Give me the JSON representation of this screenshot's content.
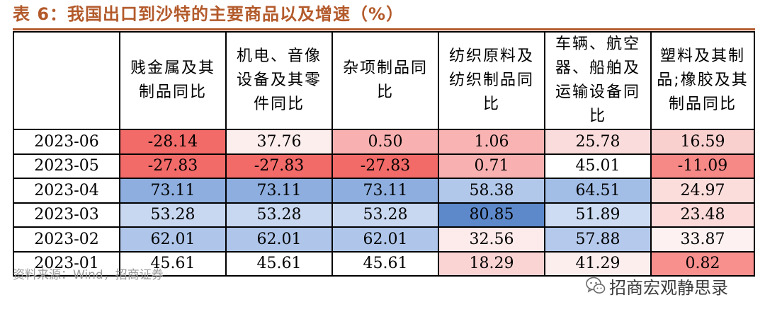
{
  "title": "表 6：我国出口到沙特的主要商品以及增速（%）",
  "table": {
    "headers": [
      "",
      "贱金属及其\n制品同比",
      "机电、音像\n设备及其零\n件同比",
      "杂项制品同\n比",
      "纺织原料及\n纺织制品同\n比",
      "车辆、航空\n器、船舶及\n运输设备同\n比",
      "塑料及其制\n品;橡胶及其\n制品同比"
    ],
    "rows": [
      {
        "date": "2023-06",
        "values": [
          "-28.14",
          "37.76",
          "0.50",
          "1.06",
          "25.78",
          "16.59"
        ],
        "colors": [
          "#f26b68",
          "#fdeeee",
          "#f8b1b0",
          "#f8b3b2",
          "#fbdcdc",
          "#fad0cf"
        ]
      },
      {
        "date": "2023-05",
        "values": [
          "-27.83",
          "-27.83",
          "-27.83",
          "0.71",
          "45.01",
          "-11.09"
        ],
        "colors": [
          "#f26b68",
          "#f26b68",
          "#f26b68",
          "#f8b1b0",
          "#ffffff",
          "#f68886"
        ]
      },
      {
        "date": "2023-04",
        "values": [
          "73.11",
          "73.11",
          "73.11",
          "58.38",
          "64.51",
          "24.97"
        ],
        "colors": [
          "#8daede",
          "#8daede",
          "#8daede",
          "#b2c8ea",
          "#a2bde6",
          "#fbdddc"
        ]
      },
      {
        "date": "2023-03",
        "values": [
          "53.28",
          "53.28",
          "53.28",
          "80.85",
          "51.89",
          "23.48"
        ],
        "colors": [
          "#c8d8f1",
          "#c8d8f1",
          "#c8d8f1",
          "#5d89cb",
          "#cddcf2",
          "#fbdad9"
        ]
      },
      {
        "date": "2023-02",
        "values": [
          "62.01",
          "62.01",
          "62.01",
          "32.56",
          "57.88",
          "33.87"
        ],
        "colors": [
          "#afc6ea",
          "#afc6ea",
          "#afc6ea",
          "#fdeaea",
          "#b4c9eb",
          "#fef1f1"
        ]
      },
      {
        "date": "2023-01",
        "values": [
          "45.61",
          "45.61",
          "45.61",
          "18.29",
          "41.29",
          "0.82"
        ],
        "colors": [
          "#ffffff",
          "#ffffff",
          "#ffffff",
          "#fad4d3",
          "#fdeeee",
          "#f8908e"
        ]
      }
    ]
  },
  "source": "资料来源：Wind，招商证券",
  "watermark": {
    "icon": "wechat-icon",
    "text": "招商宏观静思录"
  }
}
